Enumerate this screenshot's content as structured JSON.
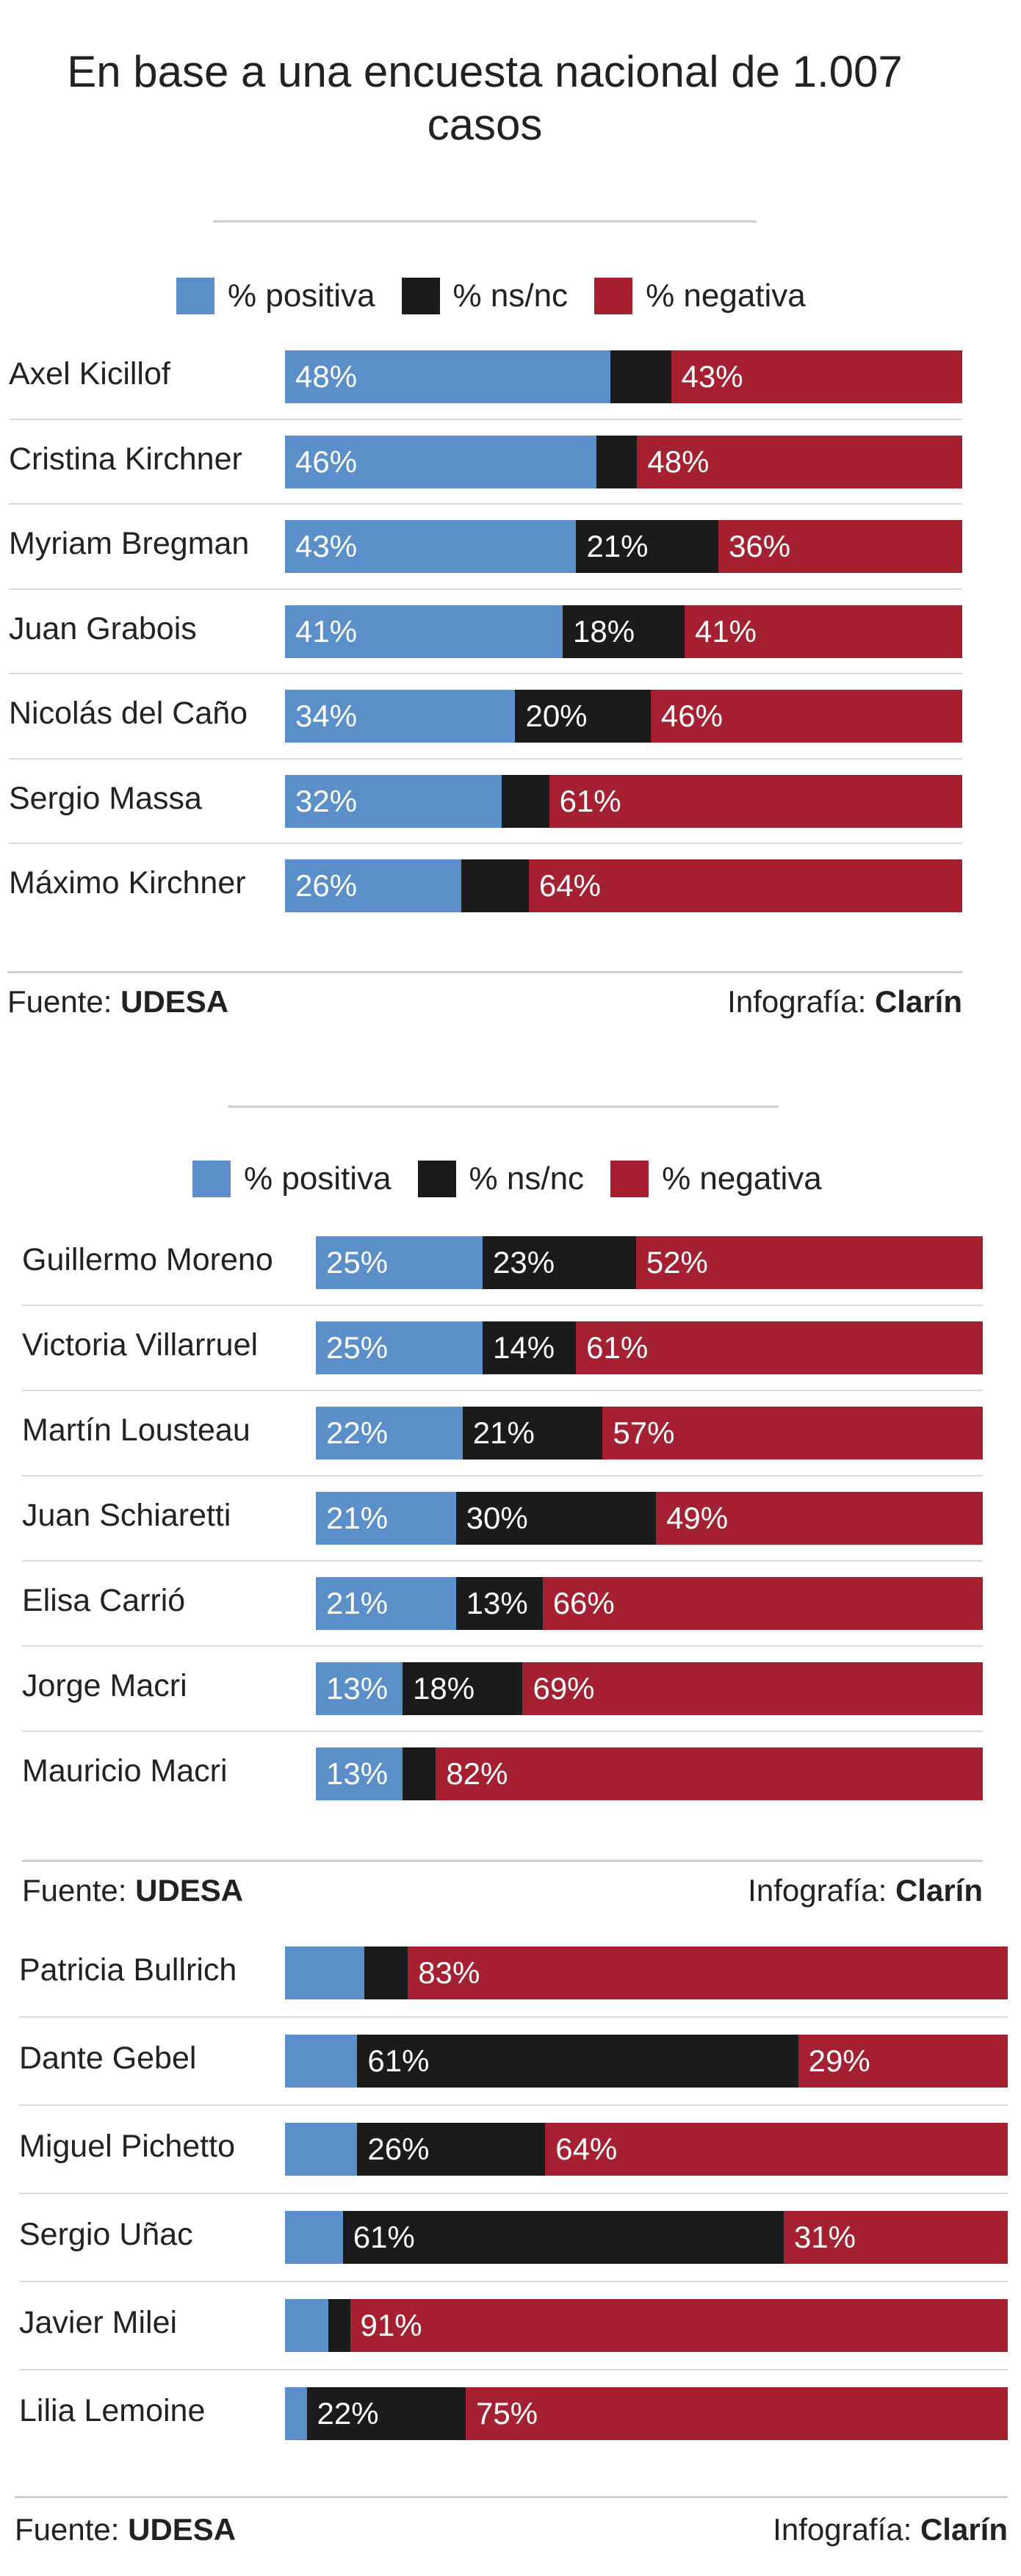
{
  "title_line1": "En base a una encuesta nacional de 1.007",
  "title_line2": "casos",
  "legend": {
    "positiva": "% positiva",
    "nsnc": "% ns/nc",
    "negativa": "% negativa"
  },
  "colors": {
    "positiva": "#5a8fc9",
    "nsnc": "#1b1b1b",
    "negativa": "#a52132"
  },
  "chart_data": [
    {
      "type": "bar",
      "stacked": true,
      "orientation": "horizontal",
      "categories": [
        "Axel Kicillof",
        "Cristina Kirchner",
        "Myriam Bregman",
        "Juan Grabois",
        "Nicolás del Caño",
        "Sergio Massa",
        "Máximo Kirchner"
      ],
      "series": [
        {
          "name": "% positiva",
          "values": [
            48,
            46,
            43,
            41,
            34,
            32,
            26
          ],
          "labels": [
            "48%",
            "46%",
            "43%",
            "41%",
            "34%",
            "32%",
            "26%"
          ]
        },
        {
          "name": "% ns/nc",
          "values": [
            9,
            6,
            21,
            18,
            20,
            7,
            10
          ],
          "labels": [
            "",
            "",
            "21%",
            "18%",
            "20%",
            "",
            ""
          ]
        },
        {
          "name": "% negativa",
          "values": [
            43,
            48,
            36,
            41,
            46,
            61,
            64
          ],
          "labels": [
            "43%",
            "48%",
            "36%",
            "41%",
            "46%",
            "61%",
            "64%"
          ]
        }
      ],
      "source_label": "Fuente:",
      "source": "UDESA",
      "credit_label": "Infografía:",
      "credit": "Clarín"
    },
    {
      "type": "bar",
      "stacked": true,
      "orientation": "horizontal",
      "categories": [
        "Guillermo Moreno",
        "Victoria Villarruel",
        "Martín Lousteau",
        "Juan Schiaretti",
        "Elisa Carrió",
        "Jorge Macri",
        "Mauricio Macri"
      ],
      "series": [
        {
          "name": "% positiva",
          "values": [
            25,
            25,
            22,
            21,
            21,
            13,
            13
          ],
          "labels": [
            "25%",
            "25%",
            "22%",
            "21%",
            "21%",
            "13%",
            "13%"
          ]
        },
        {
          "name": "% ns/nc",
          "values": [
            23,
            14,
            21,
            30,
            13,
            18,
            5
          ],
          "labels": [
            "23%",
            "14%",
            "21%",
            "30%",
            "13%",
            "18%",
            ""
          ]
        },
        {
          "name": "% negativa",
          "values": [
            52,
            61,
            57,
            49,
            66,
            69,
            82
          ],
          "labels": [
            "52%",
            "61%",
            "57%",
            "49%",
            "66%",
            "69%",
            "82%"
          ]
        }
      ],
      "source_label": "Fuente:",
      "source": "UDESA",
      "credit_label": "Infografía:",
      "credit": "Clarín"
    },
    {
      "type": "bar",
      "stacked": true,
      "orientation": "horizontal",
      "categories": [
        "Patricia Bullrich",
        "Dante Gebel",
        "Miguel Pichetto",
        "Sergio Uñac",
        "Javier Milei",
        "Lilia Lemoine"
      ],
      "series": [
        {
          "name": "% positiva",
          "values": [
            11,
            10,
            10,
            8,
            6,
            3
          ],
          "labels": [
            "",
            "",
            "",
            "",
            "",
            ""
          ]
        },
        {
          "name": "% ns/nc",
          "values": [
            6,
            61,
            26,
            61,
            3,
            22
          ],
          "labels": [
            "",
            "61%",
            "26%",
            "61%",
            "",
            "22%"
          ]
        },
        {
          "name": "% negativa",
          "values": [
            83,
            29,
            64,
            31,
            91,
            75
          ],
          "labels": [
            "83%",
            "29%",
            "64%",
            "31%",
            "91%",
            "75%"
          ]
        }
      ],
      "source_label": "Fuente:",
      "source": "UDESA",
      "credit_label": "Infografía:",
      "credit": "Clarín"
    }
  ]
}
